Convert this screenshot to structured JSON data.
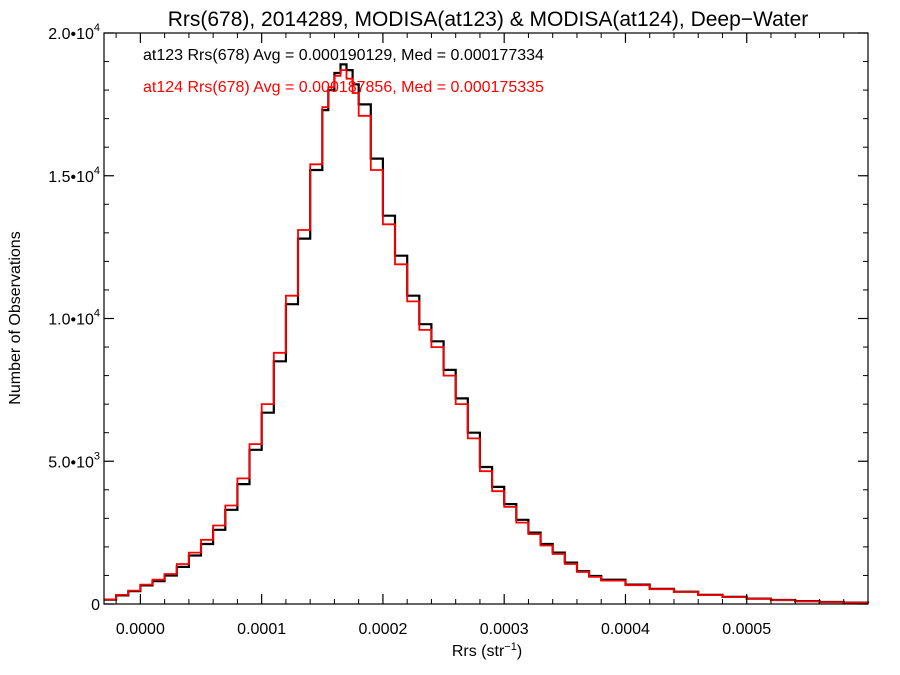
{
  "chart_data": {
    "type": "line",
    "title": "Rrs(678), 2014289, MODISA(at123) & MODISA(at124), Deep−Water",
    "xlabel": "Rrs (str",
    "xlabel_sup": "−1",
    "xlabel_end": ")",
    "ylabel": "Number of Observations",
    "xlim": [
      -3e-05,
      0.0006
    ],
    "ylim": [
      0,
      20000
    ],
    "x_ticks": [
      0.0,
      0.0001,
      0.0002,
      0.0003,
      0.0004,
      0.0005
    ],
    "x_tick_labels": [
      "0.0000",
      "0.0001",
      "0.0002",
      "0.0003",
      "0.0004",
      "0.0005"
    ],
    "y_ticks": [
      0,
      5000,
      10000,
      15000,
      20000
    ],
    "y_tick_labels": [
      {
        "base": "0",
        "exp": ""
      },
      {
        "base": "5.0•10",
        "exp": "3"
      },
      {
        "base": "1.0•10",
        "exp": "4"
      },
      {
        "base": "1.5•10",
        "exp": "4"
      },
      {
        "base": "2.0•10",
        "exp": "4"
      }
    ],
    "grid": false,
    "step": true,
    "annotations": [
      {
        "text": "at123 Rrs(678) Avg = 0.000190129, Med = 0.000177334",
        "color": "#000000"
      },
      {
        "text": "at124 Rrs(678) Avg = 0.000187856, Med = 0.000175335",
        "color": "#ff0000"
      }
    ],
    "series": [
      {
        "name": "at123",
        "color": "#000000",
        "x": [
          -3e-05,
          -2e-05,
          -1e-05,
          0.0,
          1e-05,
          2e-05,
          3e-05,
          4e-05,
          5e-05,
          6e-05,
          7e-05,
          8e-05,
          9e-05,
          0.0001,
          0.00011,
          0.00012,
          0.00013,
          0.00014,
          0.00015,
          0.000155,
          0.00016,
          0.000165,
          0.00017,
          0.000175,
          0.00018,
          0.00019,
          0.0002,
          0.00021,
          0.00022,
          0.00023,
          0.00024,
          0.00025,
          0.00026,
          0.00027,
          0.00028,
          0.00029,
          0.0003,
          0.00031,
          0.00032,
          0.00033,
          0.00034,
          0.00035,
          0.00036,
          0.00037,
          0.00038,
          0.0004,
          0.00042,
          0.00044,
          0.00046,
          0.00048,
          0.0005,
          0.00052,
          0.00054,
          0.00056,
          0.00058,
          0.0006
        ],
        "y": [
          150,
          300,
          450,
          650,
          800,
          1000,
          1300,
          1700,
          2100,
          2600,
          3300,
          4200,
          5400,
          6700,
          8500,
          10500,
          12800,
          15200,
          17300,
          18000,
          18600,
          18900,
          18700,
          18200,
          17500,
          15600,
          13600,
          12200,
          10800,
          9800,
          9200,
          8200,
          7200,
          6000,
          4800,
          4100,
          3500,
          2950,
          2500,
          2100,
          1800,
          1450,
          1150,
          980,
          850,
          680,
          530,
          430,
          320,
          250,
          190,
          140,
          100,
          70,
          50,
          30
        ]
      },
      {
        "name": "at124",
        "color": "#ff0000",
        "x": [
          -3e-05,
          -2e-05,
          -1e-05,
          0.0,
          1e-05,
          2e-05,
          3e-05,
          4e-05,
          5e-05,
          6e-05,
          7e-05,
          8e-05,
          9e-05,
          0.0001,
          0.00011,
          0.00012,
          0.00013,
          0.00014,
          0.00015,
          0.000155,
          0.00016,
          0.000165,
          0.00017,
          0.000175,
          0.00018,
          0.00019,
          0.0002,
          0.00021,
          0.00022,
          0.00023,
          0.00024,
          0.00025,
          0.00026,
          0.00027,
          0.00028,
          0.00029,
          0.0003,
          0.00031,
          0.00032,
          0.00033,
          0.00034,
          0.00035,
          0.00036,
          0.00037,
          0.00038,
          0.0004,
          0.00042,
          0.00044,
          0.00046,
          0.00048,
          0.0005,
          0.00052,
          0.00054,
          0.00056,
          0.00058,
          0.0006
        ],
        "y": [
          160,
          320,
          470,
          680,
          850,
          1050,
          1400,
          1800,
          2250,
          2750,
          3450,
          4400,
          5600,
          7000,
          8800,
          10800,
          13100,
          15400,
          17400,
          18100,
          18500,
          18700,
          18400,
          17900,
          17100,
          15200,
          13300,
          11900,
          10600,
          9600,
          9000,
          8000,
          7000,
          5800,
          4650,
          3950,
          3400,
          2850,
          2450,
          2050,
          1750,
          1400,
          1120,
          950,
          820,
          660,
          520,
          420,
          310,
          240,
          185,
          135,
          95,
          65,
          45,
          28
        ]
      }
    ]
  }
}
